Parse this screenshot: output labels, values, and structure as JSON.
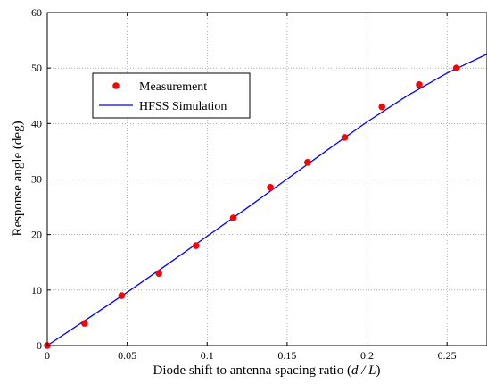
{
  "chart_data": {
    "type": "scatter",
    "xlabel_main": "Diode shift to antenna spacing ratio (",
    "xlabel_italic": "d / L",
    "xlabel_end": ")",
    "ylabel": "Response angle (deg)",
    "xlim": [
      0,
      0.275
    ],
    "ylim": [
      0,
      60
    ],
    "x_ticks": [
      "0",
      "0.05",
      "0.1",
      "0.15",
      "0.2",
      "0.25"
    ],
    "y_ticks": [
      "0",
      "10",
      "20",
      "30",
      "40",
      "50",
      "60"
    ],
    "grid": true,
    "legend_position": "upper-left",
    "series": [
      {
        "name": "Measurement",
        "kind": "markers",
        "color": "#ff0000",
        "x": [
          0,
          0.0233,
          0.0465,
          0.0698,
          0.093,
          0.1163,
          0.1395,
          0.1628,
          0.186,
          0.2093,
          0.2326,
          0.2558
        ],
        "y": [
          0,
          4,
          9,
          13,
          18,
          23,
          28.5,
          33,
          37.5,
          43,
          47,
          50
        ]
      },
      {
        "name": "HFSS Simulation",
        "kind": "line",
        "color": "#0000ff",
        "x": [
          0,
          0.025,
          0.05,
          0.075,
          0.1,
          0.125,
          0.15,
          0.175,
          0.2,
          0.225,
          0.25,
          0.275
        ],
        "y": [
          0,
          4.8,
          9.6,
          14.6,
          19.7,
          24.8,
          30.0,
          35.2,
          40.3,
          45.0,
          49.1,
          52.5
        ]
      }
    ]
  }
}
